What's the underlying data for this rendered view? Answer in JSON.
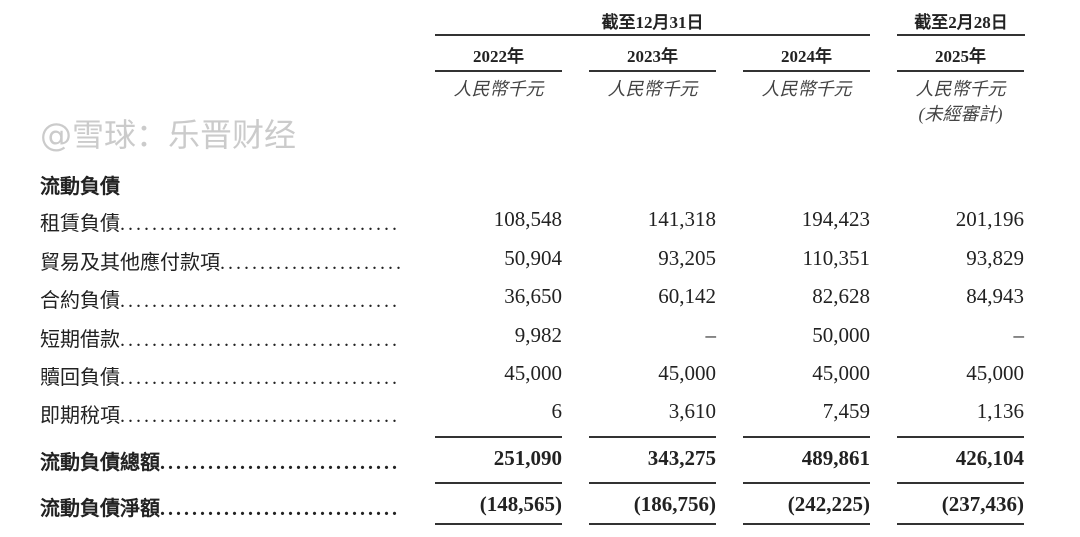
{
  "header": {
    "group1": "截至12月31日",
    "group2": "截至2月28日",
    "years": [
      "2022年",
      "2023年",
      "2024年",
      "2025年"
    ],
    "units": [
      "人民幣千元",
      "人民幣千元",
      "人民幣千元",
      "人民幣千元"
    ],
    "unaudited": "(未經審計)"
  },
  "section_title": "流動負債",
  "rows": [
    {
      "label": "租賃負債",
      "values": [
        "108,548",
        "141,318",
        "194,423",
        "201,196"
      ]
    },
    {
      "label": "貿易及其他應付款項",
      "values": [
        "50,904",
        "93,205",
        "110,351",
        "93,829"
      ]
    },
    {
      "label": "合約負債",
      "values": [
        "36,650",
        "60,142",
        "82,628",
        "84,943"
      ]
    },
    {
      "label": "短期借款",
      "values": [
        "9,982",
        "–",
        "50,000",
        "–"
      ]
    },
    {
      "label": "贖回負債",
      "values": [
        "45,000",
        "45,000",
        "45,000",
        "45,000"
      ]
    },
    {
      "label": "即期稅項",
      "values": [
        "6",
        "3,610",
        "7,459",
        "1,136"
      ]
    },
    {
      "label": "流動負債總額",
      "values": [
        "251,090",
        "343,275",
        "489,861",
        "426,104"
      ],
      "bold": true
    },
    {
      "label": "流動負債淨額",
      "values": [
        "(148,565)",
        "(186,756)",
        "(242,225)",
        "(237,436)"
      ],
      "bold": true
    }
  ],
  "watermark": "@雪球：乐晋财经"
}
